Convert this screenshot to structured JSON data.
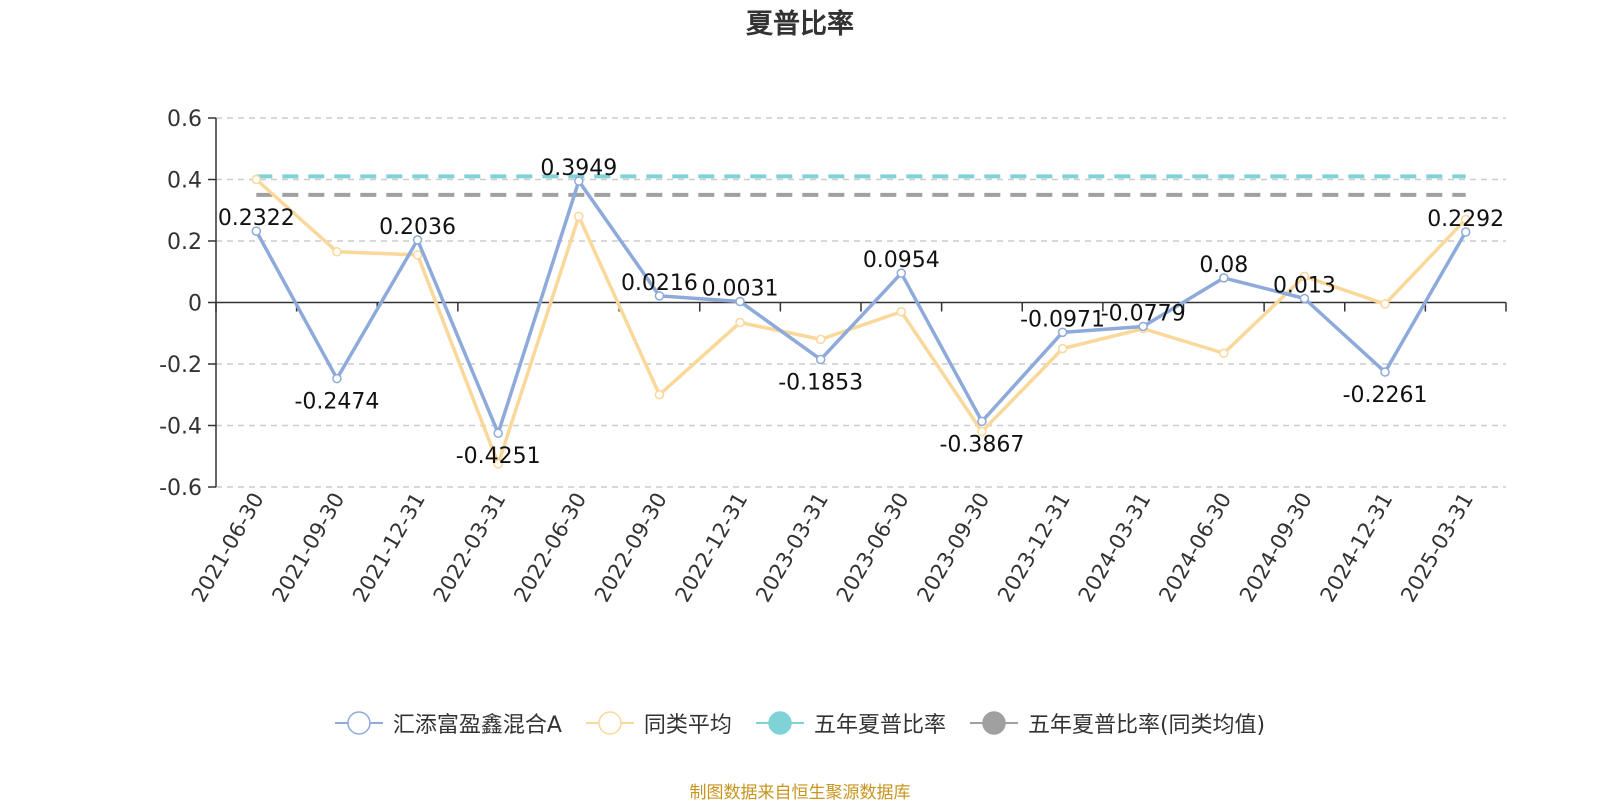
{
  "chart_data": {
    "type": "line",
    "title": "夏普比率",
    "categories": [
      "2021-06-30",
      "2021-09-30",
      "2021-12-31",
      "2022-03-31",
      "2022-06-30",
      "2022-09-30",
      "2022-12-31",
      "2023-03-31",
      "2023-06-30",
      "2023-09-30",
      "2023-12-31",
      "2024-03-31",
      "2024-06-30",
      "2024-09-30",
      "2024-12-31",
      "2025-03-31"
    ],
    "ylim": [
      -0.6,
      0.6
    ],
    "yticks": [
      0.6,
      0.4,
      0.2,
      0,
      -0.2,
      -0.4,
      -0.6
    ],
    "grid": true,
    "legend_position": "bottom",
    "series": [
      {
        "name": "汇添富盈鑫混合A",
        "color": "#8eaadb",
        "values": [
          0.2322,
          -0.2474,
          0.2036,
          -0.4251,
          0.3949,
          0.0216,
          0.0031,
          -0.1853,
          0.0954,
          -0.3867,
          -0.0971,
          -0.0779,
          0.08,
          0.013,
          -0.2261,
          0.2292
        ],
        "labels": [
          "0.2322",
          "-0.2474",
          "0.2036",
          "-0.4251",
          "0.3949",
          "0.0216",
          "0.0031",
          "-0.1853",
          "0.0954",
          "-0.3867",
          "-0.0971",
          "-0.0779",
          "0.08",
          "0.013",
          "-0.2261",
          "0.2292"
        ]
      },
      {
        "name": "同类平均",
        "color": "#f9d89a",
        "values": [
          0.4,
          0.165,
          0.155,
          -0.525,
          0.28,
          -0.3,
          -0.065,
          -0.12,
          -0.03,
          -0.42,
          -0.15,
          -0.085,
          -0.165,
          0.085,
          -0.005,
          0.27
        ]
      },
      {
        "name": "五年夏普比率",
        "color": "#7fd3d6",
        "constant": 0.41
      },
      {
        "name": "五年夏普比率(同类均值)",
        "color": "#a0a0a0",
        "constant": 0.35
      }
    ],
    "source": "制图数据来自恒生聚源数据库"
  }
}
